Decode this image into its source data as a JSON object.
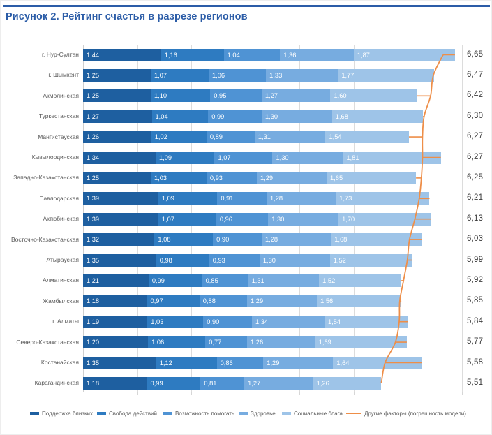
{
  "page": {
    "title": "Рисунок 2. Рейтинг счастья в разрезе регионов"
  },
  "chart_data": {
    "type": "bar",
    "subtype": "horizontal-stacked-with-line-overlay",
    "title": "Рисунок 2. Рейтинг счастья в разрезе регионов",
    "xlim": [
      0,
      7
    ],
    "grid": "vertical gridlines every 1.0, no x tick labels",
    "legend_position": "bottom",
    "decimal_separator": ",",
    "categories": [
      "г. Нур-Султан",
      "г. Шымкент",
      "Акмолинская",
      "Туркестанская",
      "Мангистауская",
      "Кызылординская",
      "Западно-Казахстанская",
      "Павлодарская",
      "Актюбинская",
      "Восточно-Казахстанская",
      "Атырауская",
      "Алматинская",
      "Жамбылская",
      "г. Алматы",
      "Северо-Казахстанская",
      "Костанайская",
      "Карагандинская"
    ],
    "series": [
      {
        "name": "Поддержка близких",
        "color": "#1e5fa0",
        "values": [
          1.44,
          1.25,
          1.25,
          1.27,
          1.26,
          1.34,
          1.25,
          1.39,
          1.39,
          1.32,
          1.35,
          1.21,
          1.18,
          1.19,
          1.2,
          1.35,
          1.18
        ]
      },
      {
        "name": "Свобода действий",
        "color": "#2e7bc1",
        "values": [
          1.16,
          1.07,
          1.1,
          1.04,
          1.02,
          1.09,
          1.03,
          1.09,
          1.07,
          1.08,
          0.98,
          0.99,
          0.97,
          1.03,
          1.06,
          1.12,
          0.99
        ]
      },
      {
        "name": "Возможность помогать",
        "color": "#4f93d4",
        "values": [
          1.04,
          1.06,
          0.95,
          0.99,
          0.89,
          1.07,
          0.93,
          0.91,
          0.96,
          0.9,
          0.93,
          0.85,
          0.88,
          0.9,
          0.77,
          0.86,
          0.81
        ]
      },
      {
        "name": "Здоровье",
        "color": "#77ace0",
        "values": [
          1.36,
          1.33,
          1.27,
          1.3,
          1.31,
          1.3,
          1.29,
          1.28,
          1.3,
          1.28,
          1.3,
          1.31,
          1.29,
          1.34,
          1.26,
          1.29,
          1.27
        ]
      },
      {
        "name": "Социальные блага",
        "color": "#9ec4e8",
        "values": [
          1.87,
          1.77,
          1.6,
          1.68,
          1.54,
          1.81,
          1.65,
          1.73,
          1.7,
          1.68,
          1.52,
          1.52,
          1.56,
          1.54,
          1.69,
          1.64,
          1.26
        ]
      }
    ],
    "line_series": {
      "name": "Другие факторы (погрешность модели)",
      "color": "#ee8e48",
      "values": [
        6.65,
        6.47,
        6.42,
        6.3,
        6.27,
        6.27,
        6.25,
        6.21,
        6.13,
        6.03,
        5.99,
        5.92,
        5.85,
        5.84,
        5.77,
        5.58,
        5.51
      ]
    }
  },
  "legend": {
    "items": [
      {
        "label": "Поддержка близких",
        "color": "#1e5fa0",
        "type": "swatch"
      },
      {
        "label": "Свобода действий",
        "color": "#2e7bc1",
        "type": "swatch"
      },
      {
        "label": "Возможность помогать",
        "color": "#4f93d4",
        "type": "swatch"
      },
      {
        "label": "Здоровье",
        "color": "#77ace0",
        "type": "swatch"
      },
      {
        "label": "Социальные блага",
        "color": "#9ec4e8",
        "type": "swatch"
      },
      {
        "label": "Другие факторы (погрешность модели)",
        "color": "#ee8e48",
        "type": "line"
      }
    ]
  },
  "accent_colors": {
    "title_blue": "#2b5ca7",
    "grid_gray": "#dcdcdc",
    "label_gray": "#595959",
    "total_text": "#3b3b3b"
  }
}
